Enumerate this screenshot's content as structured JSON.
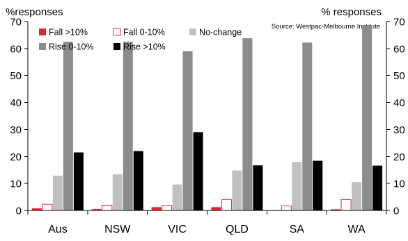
{
  "chart_data": {
    "type": "bar",
    "source_note": "Source: Westpac-Melbourne Institute",
    "ylabel_left": "%responses",
    "ylabel_right": "% responses",
    "categories": [
      "Aus",
      "NSW",
      "VIC",
      "QLD",
      "SA",
      "WA"
    ],
    "ylim": [
      0,
      70
    ],
    "yticks": [
      0,
      10,
      20,
      30,
      40,
      50,
      60,
      70
    ],
    "grid": false,
    "legend_position": "top-left",
    "series": [
      {
        "name": "Fall >10%",
        "color": "#e3262d",
        "outline": false,
        "values": [
          0.8,
          0.5,
          1.2,
          1.2,
          0.1,
          0.4
        ]
      },
      {
        "name": "Fall 0-10%",
        "color": "#ffffff",
        "stroke": "#e3262d",
        "outline": true,
        "values": [
          2.3,
          1.9,
          1.8,
          4.0,
          1.7,
          4.0
        ]
      },
      {
        "name": "No-change",
        "color": "#c0c0c0",
        "outline": false,
        "values": [
          12.9,
          13.4,
          9.6,
          14.8,
          18.0,
          10.5
        ]
      },
      {
        "name": "Rise 0-10%",
        "color": "#8c8c8c",
        "outline": false,
        "values": [
          62.5,
          62.5,
          59.0,
          63.8,
          62.2,
          68.6
        ]
      },
      {
        "name": "Rise >10%",
        "color": "#000000",
        "outline": false,
        "values": [
          21.5,
          22.0,
          29.0,
          16.7,
          18.4,
          16.6
        ]
      }
    ]
  }
}
